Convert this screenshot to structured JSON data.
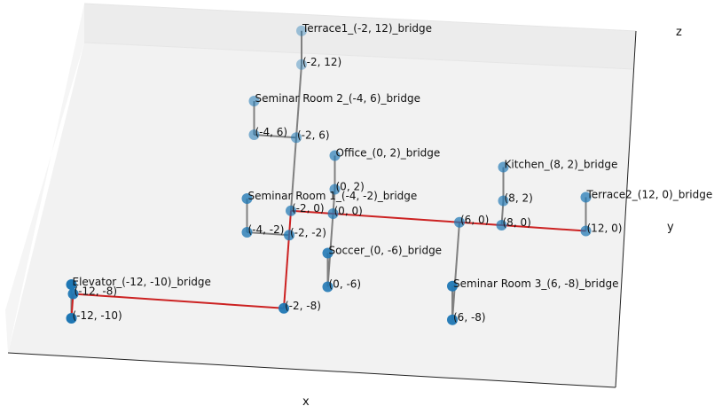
{
  "axes": {
    "x_label": "x",
    "y_label": "y",
    "z_label": "z"
  },
  "colors": {
    "node": "#1f77b4",
    "edge": "#808080",
    "path": "#cc2222",
    "pane_floor": "#f2f2f2",
    "pane_back": "#ececec",
    "pane_side": "#f5f5f5",
    "grid": "#e6e6e6"
  },
  "nodes": [
    {
      "id": "terrace1-bridge",
      "label": "Terrace1_(-2, 12)_bridge",
      "x": -2,
      "y": 12,
      "z": 1
    },
    {
      "id": "n-2-12",
      "label": "(-2, 12)",
      "x": -2,
      "y": 12,
      "z": 0
    },
    {
      "id": "seminar2-bridge",
      "label": "Seminar Room 2_(-4, 6)_bridge",
      "x": -4,
      "y": 6,
      "z": 1
    },
    {
      "id": "n-4-6",
      "label": "(-4, 6)",
      "x": -4,
      "y": 6,
      "z": 0
    },
    {
      "id": "n-2-6",
      "label": "(-2, 6)",
      "x": -2,
      "y": 6,
      "z": 0
    },
    {
      "id": "office-bridge",
      "label": "Office_(0, 2)_bridge",
      "x": 0,
      "y": 2,
      "z": 1
    },
    {
      "id": "n0-2",
      "label": "(0, 2)",
      "x": 0,
      "y": 2,
      "z": 0
    },
    {
      "id": "seminar1-bridge",
      "label": "Seminar Room 1_(-4, -2)_bridge",
      "x": -4,
      "y": -2,
      "z": 1
    },
    {
      "id": "n-2-0",
      "label": "(-2, 0)",
      "x": -2,
      "y": 0,
      "z": 0
    },
    {
      "id": "n0-0",
      "label": "(0, 0)",
      "x": 0,
      "y": 0,
      "z": 0
    },
    {
      "id": "n-4--2",
      "label": "(-4, -2)",
      "x": -4,
      "y": -2,
      "z": 0
    },
    {
      "id": "n-2--2",
      "label": "(-2, -2)",
      "x": -2,
      "y": -2,
      "z": 0
    },
    {
      "id": "soccer-bridge",
      "label": "Soccer_(0, -6)_bridge",
      "x": 0,
      "y": -6,
      "z": 1
    },
    {
      "id": "n0--6",
      "label": "(0, -6)",
      "x": 0,
      "y": -6,
      "z": 0
    },
    {
      "id": "kitchen-bridge",
      "label": "Kitchen_(8, 2)_bridge",
      "x": 8,
      "y": 2,
      "z": 1
    },
    {
      "id": "n8-2",
      "label": "(8, 2)",
      "x": 8,
      "y": 2,
      "z": 0
    },
    {
      "id": "n8-0",
      "label": "(8, 0)",
      "x": 8,
      "y": 0,
      "z": 0
    },
    {
      "id": "n6-0",
      "label": "(6, 0)",
      "x": 6,
      "y": 0,
      "z": 0
    },
    {
      "id": "terrace2-bridge",
      "label": "Terrace2_(12, 0)_bridge",
      "x": 12,
      "y": 0,
      "z": 1
    },
    {
      "id": "n12-0",
      "label": "(12, 0)",
      "x": 12,
      "y": 0,
      "z": 0
    },
    {
      "id": "seminar3-bridge",
      "label": "Seminar Room 3_(6, -8)_bridge",
      "x": 6,
      "y": -8,
      "z": 1
    },
    {
      "id": "n6--8",
      "label": "(6, -8)",
      "x": 6,
      "y": -8,
      "z": 0
    },
    {
      "id": "elevator-bridge",
      "label": "Elevator_(-12, -10)_bridge",
      "x": -12,
      "y": -10,
      "z": 1
    },
    {
      "id": "n-12--8",
      "label": "(-12, -8)",
      "x": -12,
      "y": -8,
      "z": 0
    },
    {
      "id": "n-12--10",
      "label": "(-12, -10)",
      "x": -12,
      "y": -10,
      "z": 0
    },
    {
      "id": "n-2--8",
      "label": "(-2, -8)",
      "x": -2,
      "y": -8,
      "z": 0
    }
  ],
  "edges": [
    {
      "from": "terrace1-bridge",
      "to": "n-2-12",
      "type": "normal"
    },
    {
      "from": "n-2-12",
      "to": "n-2-6",
      "type": "normal"
    },
    {
      "from": "n-2-6",
      "to": "n-2-0",
      "type": "normal"
    },
    {
      "from": "seminar2-bridge",
      "to": "n-4-6",
      "type": "normal"
    },
    {
      "from": "n-4-6",
      "to": "n-2-6",
      "type": "normal"
    },
    {
      "from": "office-bridge",
      "to": "n0-2",
      "type": "normal"
    },
    {
      "from": "n0-2",
      "to": "n0-0",
      "type": "normal"
    },
    {
      "from": "seminar1-bridge",
      "to": "n-4--2",
      "type": "normal"
    },
    {
      "from": "n-4--2",
      "to": "n-2--2",
      "type": "normal"
    },
    {
      "from": "n0-0",
      "to": "n0--6",
      "type": "normal"
    },
    {
      "from": "soccer-bridge",
      "to": "n0--6",
      "type": "normal"
    },
    {
      "from": "kitchen-bridge",
      "to": "n8-2",
      "type": "normal"
    },
    {
      "from": "n8-2",
      "to": "n8-0",
      "type": "normal"
    },
    {
      "from": "terrace2-bridge",
      "to": "n12-0",
      "type": "normal"
    },
    {
      "from": "n6-0",
      "to": "n6--8",
      "type": "normal"
    },
    {
      "from": "seminar3-bridge",
      "to": "n6--8",
      "type": "normal"
    },
    {
      "from": "elevator-bridge",
      "to": "n-12--10",
      "type": "normal"
    },
    {
      "from": "n-2-0",
      "to": "n0-0",
      "type": "path"
    },
    {
      "from": "n0-0",
      "to": "n6-0",
      "type": "path"
    },
    {
      "from": "n6-0",
      "to": "n8-0",
      "type": "path"
    },
    {
      "from": "n8-0",
      "to": "n12-0",
      "type": "path"
    },
    {
      "from": "n-2-0",
      "to": "n-2--2",
      "type": "path"
    },
    {
      "from": "n-2--2",
      "to": "n-2--8",
      "type": "path"
    },
    {
      "from": "n-2--8",
      "to": "n-12--8",
      "type": "path"
    },
    {
      "from": "n-12--8",
      "to": "n-12--10",
      "type": "path"
    }
  ]
}
